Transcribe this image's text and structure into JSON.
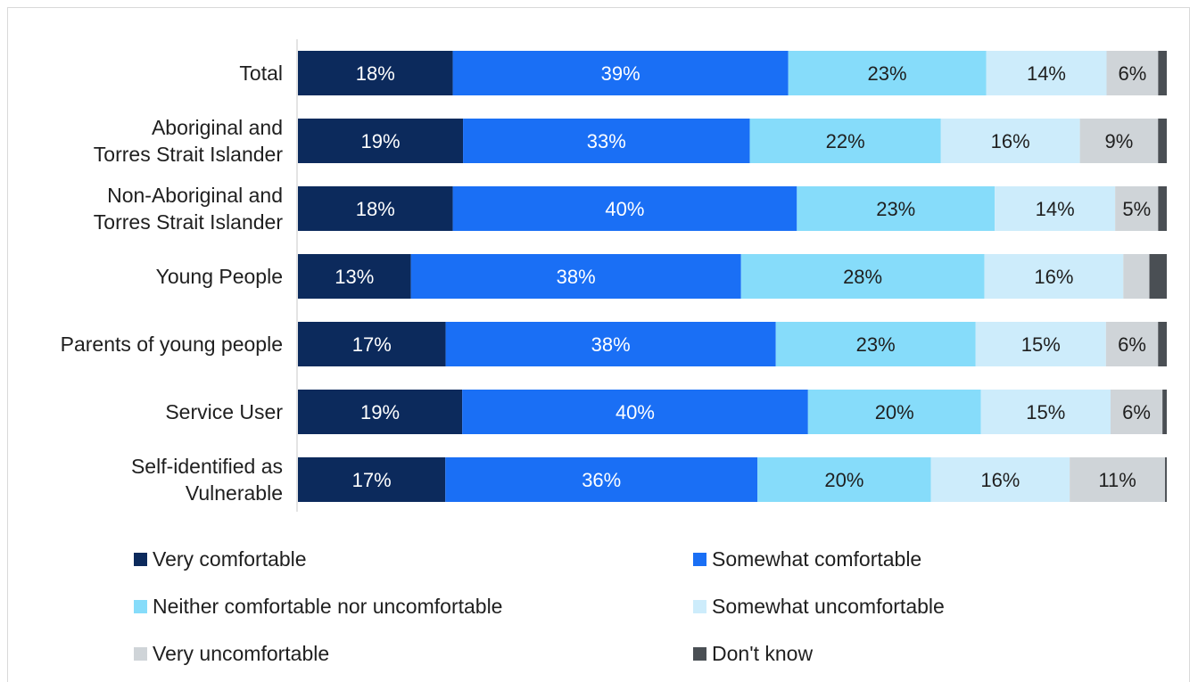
{
  "chart_data": {
    "type": "bar",
    "orientation": "horizontal",
    "stacked": true,
    "percent_stacked": true,
    "categories": [
      [
        "Total"
      ],
      [
        "Aboriginal and",
        "Torres Strait Islander"
      ],
      [
        "Non-Aboriginal and",
        "Torres Strait Islander"
      ],
      [
        "Young People"
      ],
      [
        "Parents of young people"
      ],
      [
        "Service User"
      ],
      [
        "Self-identified as",
        "Vulnerable"
      ]
    ],
    "series": [
      {
        "name": "Very comfortable",
        "color": "#0c2a5c",
        "label_color": "#ffffff",
        "values": [
          18,
          19,
          18,
          13,
          17,
          19,
          17
        ],
        "labels": [
          "18%",
          "19%",
          "18%",
          "13%",
          "17%",
          "19%",
          "17%"
        ]
      },
      {
        "name": "Somewhat comfortable",
        "color": "#1a6ff5",
        "label_color": "#ffffff",
        "values": [
          39,
          33,
          40,
          38,
          38,
          40,
          36
        ],
        "labels": [
          "39%",
          "33%",
          "40%",
          "38%",
          "38%",
          "40%",
          "36%"
        ]
      },
      {
        "name": "Neither comfortable nor uncomfortable",
        "color": "#86dcfa",
        "label_color": "#1f1f1f",
        "values": [
          23,
          22,
          23,
          28,
          23,
          20,
          20
        ],
        "labels": [
          "23%",
          "22%",
          "23%",
          "28%",
          "23%",
          "20%",
          "20%"
        ]
      },
      {
        "name": "Somewhat uncomfortable",
        "color": "#cdecfb",
        "label_color": "#1f1f1f",
        "values": [
          14,
          16,
          14,
          16,
          15,
          15,
          16
        ],
        "labels": [
          "14%",
          "16%",
          "14%",
          "16%",
          "15%",
          "15%",
          "16%"
        ]
      },
      {
        "name": "Very uncomfortable",
        "color": "#cfd4d8",
        "label_color": "#1f1f1f",
        "values": [
          6,
          9,
          5,
          3,
          6,
          6,
          11
        ],
        "labels": [
          "6%",
          "9%",
          "5%",
          "",
          "6%",
          "6%",
          "11%"
        ]
      },
      {
        "name": "Don't know",
        "color": "#4a4f54",
        "label_color": "#ffffff",
        "values": [
          1,
          1,
          1,
          2,
          1,
          0.5,
          0.2
        ],
        "labels": [
          "",
          "",
          "",
          "",
          "",
          "",
          ""
        ]
      }
    ],
    "xlim": [
      0,
      100
    ],
    "legend_position": "bottom",
    "grid": false
  }
}
